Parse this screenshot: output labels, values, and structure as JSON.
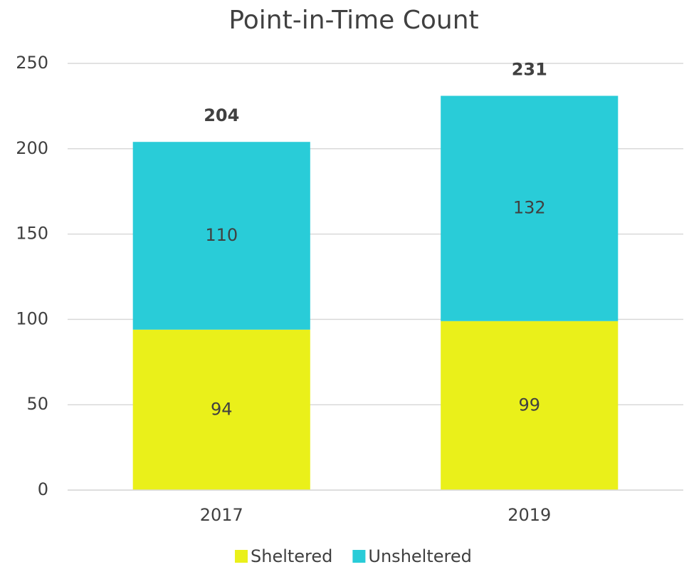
{
  "chart_data": {
    "type": "stacked_bar",
    "title": "Point-in-Time Count",
    "categories": [
      "2017",
      "2019"
    ],
    "series": [
      {
        "name": "Sheltered",
        "color": "#eaf01a",
        "values": [
          94,
          99
        ]
      },
      {
        "name": "Unsheltered",
        "color": "#29ccd8",
        "values": [
          110,
          132
        ]
      }
    ],
    "totals": [
      204,
      231
    ],
    "ylim": [
      0,
      250
    ],
    "yticks": [
      0,
      50,
      100,
      150,
      200,
      250
    ],
    "grid": true,
    "legend": "bottom"
  }
}
